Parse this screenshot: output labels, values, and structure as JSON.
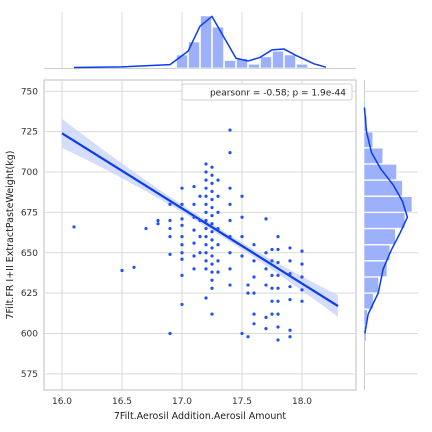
{
  "chart_data": {
    "type": "scatter",
    "xlabel": "7Filt.Aerosil Addition.Aerosil Amount",
    "ylabel": "7Filt.FR I+II ExtractPasteWeight(kg)",
    "xlim": [
      15.85,
      18.45
    ],
    "ylim": [
      565,
      757
    ],
    "xticks": [
      "16.0",
      "16.5",
      "17.0",
      "17.5",
      "18.0"
    ],
    "xtick_values": [
      16.0,
      16.5,
      17.0,
      17.5,
      18.0
    ],
    "yticks": [
      "575",
      "600",
      "625",
      "650",
      "675",
      "700",
      "725",
      "750"
    ],
    "ytick_values": [
      575,
      600,
      625,
      650,
      675,
      700,
      725,
      750
    ],
    "annotation": "pearsonr = -0.58; p = 1.9e-44",
    "grid": true,
    "legend_position": "top-right",
    "colors": {
      "points": "#1f4fff",
      "fit_line": "#0b3cf0",
      "ci_band": "#c9d5fb",
      "hist_bars": "#9db0fb",
      "grid": "#d9d9d9"
    },
    "regression": {
      "x": [
        16.0,
        18.3
      ],
      "y": [
        724,
        617
      ],
      "ci_half_width_ends": 9,
      "ci_half_width_center": 2
    },
    "points": [
      [
        16.1,
        666
      ],
      [
        16.5,
        639
      ],
      [
        16.6,
        641
      ],
      [
        16.7,
        665
      ],
      [
        16.8,
        670
      ],
      [
        16.8,
        668
      ],
      [
        16.9,
        600
      ],
      [
        16.9,
        680
      ],
      [
        16.9,
        670
      ],
      [
        16.9,
        665
      ],
      [
        16.9,
        660
      ],
      [
        16.9,
        649
      ],
      [
        17.0,
        690
      ],
      [
        17.0,
        680
      ],
      [
        17.0,
        671
      ],
      [
        17.0,
        667
      ],
      [
        17.0,
        660
      ],
      [
        17.0,
        655
      ],
      [
        17.0,
        650
      ],
      [
        17.0,
        646
      ],
      [
        17.0,
        636
      ],
      [
        17.0,
        618
      ],
      [
        17.1,
        691
      ],
      [
        17.1,
        680
      ],
      [
        17.1,
        672
      ],
      [
        17.1,
        664
      ],
      [
        17.1,
        656
      ],
      [
        17.1,
        648
      ],
      [
        17.1,
        640
      ],
      [
        17.15,
        685
      ],
      [
        17.15,
        670
      ],
      [
        17.15,
        660
      ],
      [
        17.15,
        650
      ],
      [
        17.2,
        705
      ],
      [
        17.2,
        700
      ],
      [
        17.2,
        695
      ],
      [
        17.2,
        690
      ],
      [
        17.2,
        685
      ],
      [
        17.2,
        680
      ],
      [
        17.2,
        675
      ],
      [
        17.2,
        670
      ],
      [
        17.2,
        665
      ],
      [
        17.2,
        660
      ],
      [
        17.2,
        655
      ],
      [
        17.2,
        650
      ],
      [
        17.2,
        645
      ],
      [
        17.2,
        640
      ],
      [
        17.2,
        622
      ],
      [
        17.25,
        703
      ],
      [
        17.25,
        698
      ],
      [
        17.25,
        693
      ],
      [
        17.25,
        688
      ],
      [
        17.25,
        683
      ],
      [
        17.25,
        678
      ],
      [
        17.25,
        673
      ],
      [
        17.25,
        668
      ],
      [
        17.25,
        663
      ],
      [
        17.25,
        658
      ],
      [
        17.25,
        653
      ],
      [
        17.25,
        648
      ],
      [
        17.25,
        643
      ],
      [
        17.25,
        638
      ],
      [
        17.25,
        633
      ],
      [
        17.25,
        628
      ],
      [
        17.25,
        612
      ],
      [
        17.3,
        695
      ],
      [
        17.3,
        685
      ],
      [
        17.3,
        675
      ],
      [
        17.3,
        665
      ],
      [
        17.3,
        655
      ],
      [
        17.3,
        645
      ],
      [
        17.3,
        638
      ],
      [
        17.4,
        726
      ],
      [
        17.4,
        712
      ],
      [
        17.4,
        690
      ],
      [
        17.4,
        680
      ],
      [
        17.4,
        670
      ],
      [
        17.4,
        660
      ],
      [
        17.4,
        650
      ],
      [
        17.4,
        640
      ],
      [
        17.4,
        630
      ],
      [
        17.5,
        685
      ],
      [
        17.5,
        672
      ],
      [
        17.5,
        660
      ],
      [
        17.5,
        648
      ],
      [
        17.5,
        600
      ],
      [
        17.55,
        630
      ],
      [
        17.55,
        625
      ],
      [
        17.55,
        598
      ],
      [
        17.6,
        655
      ],
      [
        17.6,
        645
      ],
      [
        17.6,
        635
      ],
      [
        17.6,
        625
      ],
      [
        17.6,
        612
      ],
      [
        17.6,
        606
      ],
      [
        17.7,
        671
      ],
      [
        17.7,
        650
      ],
      [
        17.7,
        640
      ],
      [
        17.7,
        630
      ],
      [
        17.7,
        610
      ],
      [
        17.7,
        603
      ],
      [
        17.75,
        652
      ],
      [
        17.75,
        645
      ],
      [
        17.75,
        636
      ],
      [
        17.75,
        628
      ],
      [
        17.75,
        620
      ],
      [
        17.75,
        612
      ],
      [
        17.8,
        660
      ],
      [
        17.8,
        652
      ],
      [
        17.8,
        644
      ],
      [
        17.8,
        636
      ],
      [
        17.8,
        628
      ],
      [
        17.8,
        620
      ],
      [
        17.8,
        612
      ],
      [
        17.8,
        604
      ],
      [
        17.8,
        596
      ],
      [
        17.9,
        653
      ],
      [
        17.9,
        645
      ],
      [
        17.9,
        637
      ],
      [
        17.9,
        629
      ],
      [
        17.9,
        621
      ],
      [
        17.9,
        602
      ],
      [
        17.9,
        598
      ],
      [
        18.0,
        651
      ],
      [
        18.0,
        643
      ],
      [
        18.0,
        635
      ],
      [
        18.0,
        627
      ],
      [
        18.0,
        620
      ]
    ],
    "marginal_x_hist": {
      "bin_edges": [
        16.95,
        17.05,
        17.15,
        17.25,
        17.35,
        17.45,
        17.55,
        17.65,
        17.75,
        17.85,
        17.95,
        18.05
      ],
      "heights": [
        7,
        14,
        28,
        22,
        4,
        5,
        2,
        6,
        9,
        7,
        2
      ]
    },
    "marginal_x_kde": [
      [
        16.1,
        0.2
      ],
      [
        16.5,
        0.4
      ],
      [
        16.9,
        1.2
      ],
      [
        17.05,
        6
      ],
      [
        17.15,
        15
      ],
      [
        17.25,
        18.5
      ],
      [
        17.35,
        11
      ],
      [
        17.45,
        3.5
      ],
      [
        17.55,
        2.5
      ],
      [
        17.65,
        3.8
      ],
      [
        17.75,
        6.5
      ],
      [
        17.85,
        6.8
      ],
      [
        17.95,
        4.5
      ],
      [
        18.1,
        1.5
      ],
      [
        18.2,
        0.3
      ]
    ],
    "marginal_y_hist": {
      "bin_edges": [
        595,
        605,
        615,
        625,
        635,
        645,
        655,
        665,
        675,
        685,
        695,
        705,
        715,
        725,
        735,
        745
      ],
      "heights": [
        0.5,
        0.8,
        2.2,
        3.5,
        5.5,
        6.2,
        7.5,
        9.8,
        11.5,
        9.2,
        7.8,
        4.5,
        2.1,
        0.7,
        0.3
      ]
    },
    "marginal_y_kde": [
      [
        600,
        0.2
      ],
      [
        612,
        1.0
      ],
      [
        625,
        3.4
      ],
      [
        640,
        4.6
      ],
      [
        652,
        6.6
      ],
      [
        662,
        8.6
      ],
      [
        672,
        10.4
      ],
      [
        682,
        9.2
      ],
      [
        692,
        7.0
      ],
      [
        702,
        4.0
      ],
      [
        712,
        1.8
      ],
      [
        725,
        0.6
      ],
      [
        740,
        0.1
      ]
    ]
  }
}
